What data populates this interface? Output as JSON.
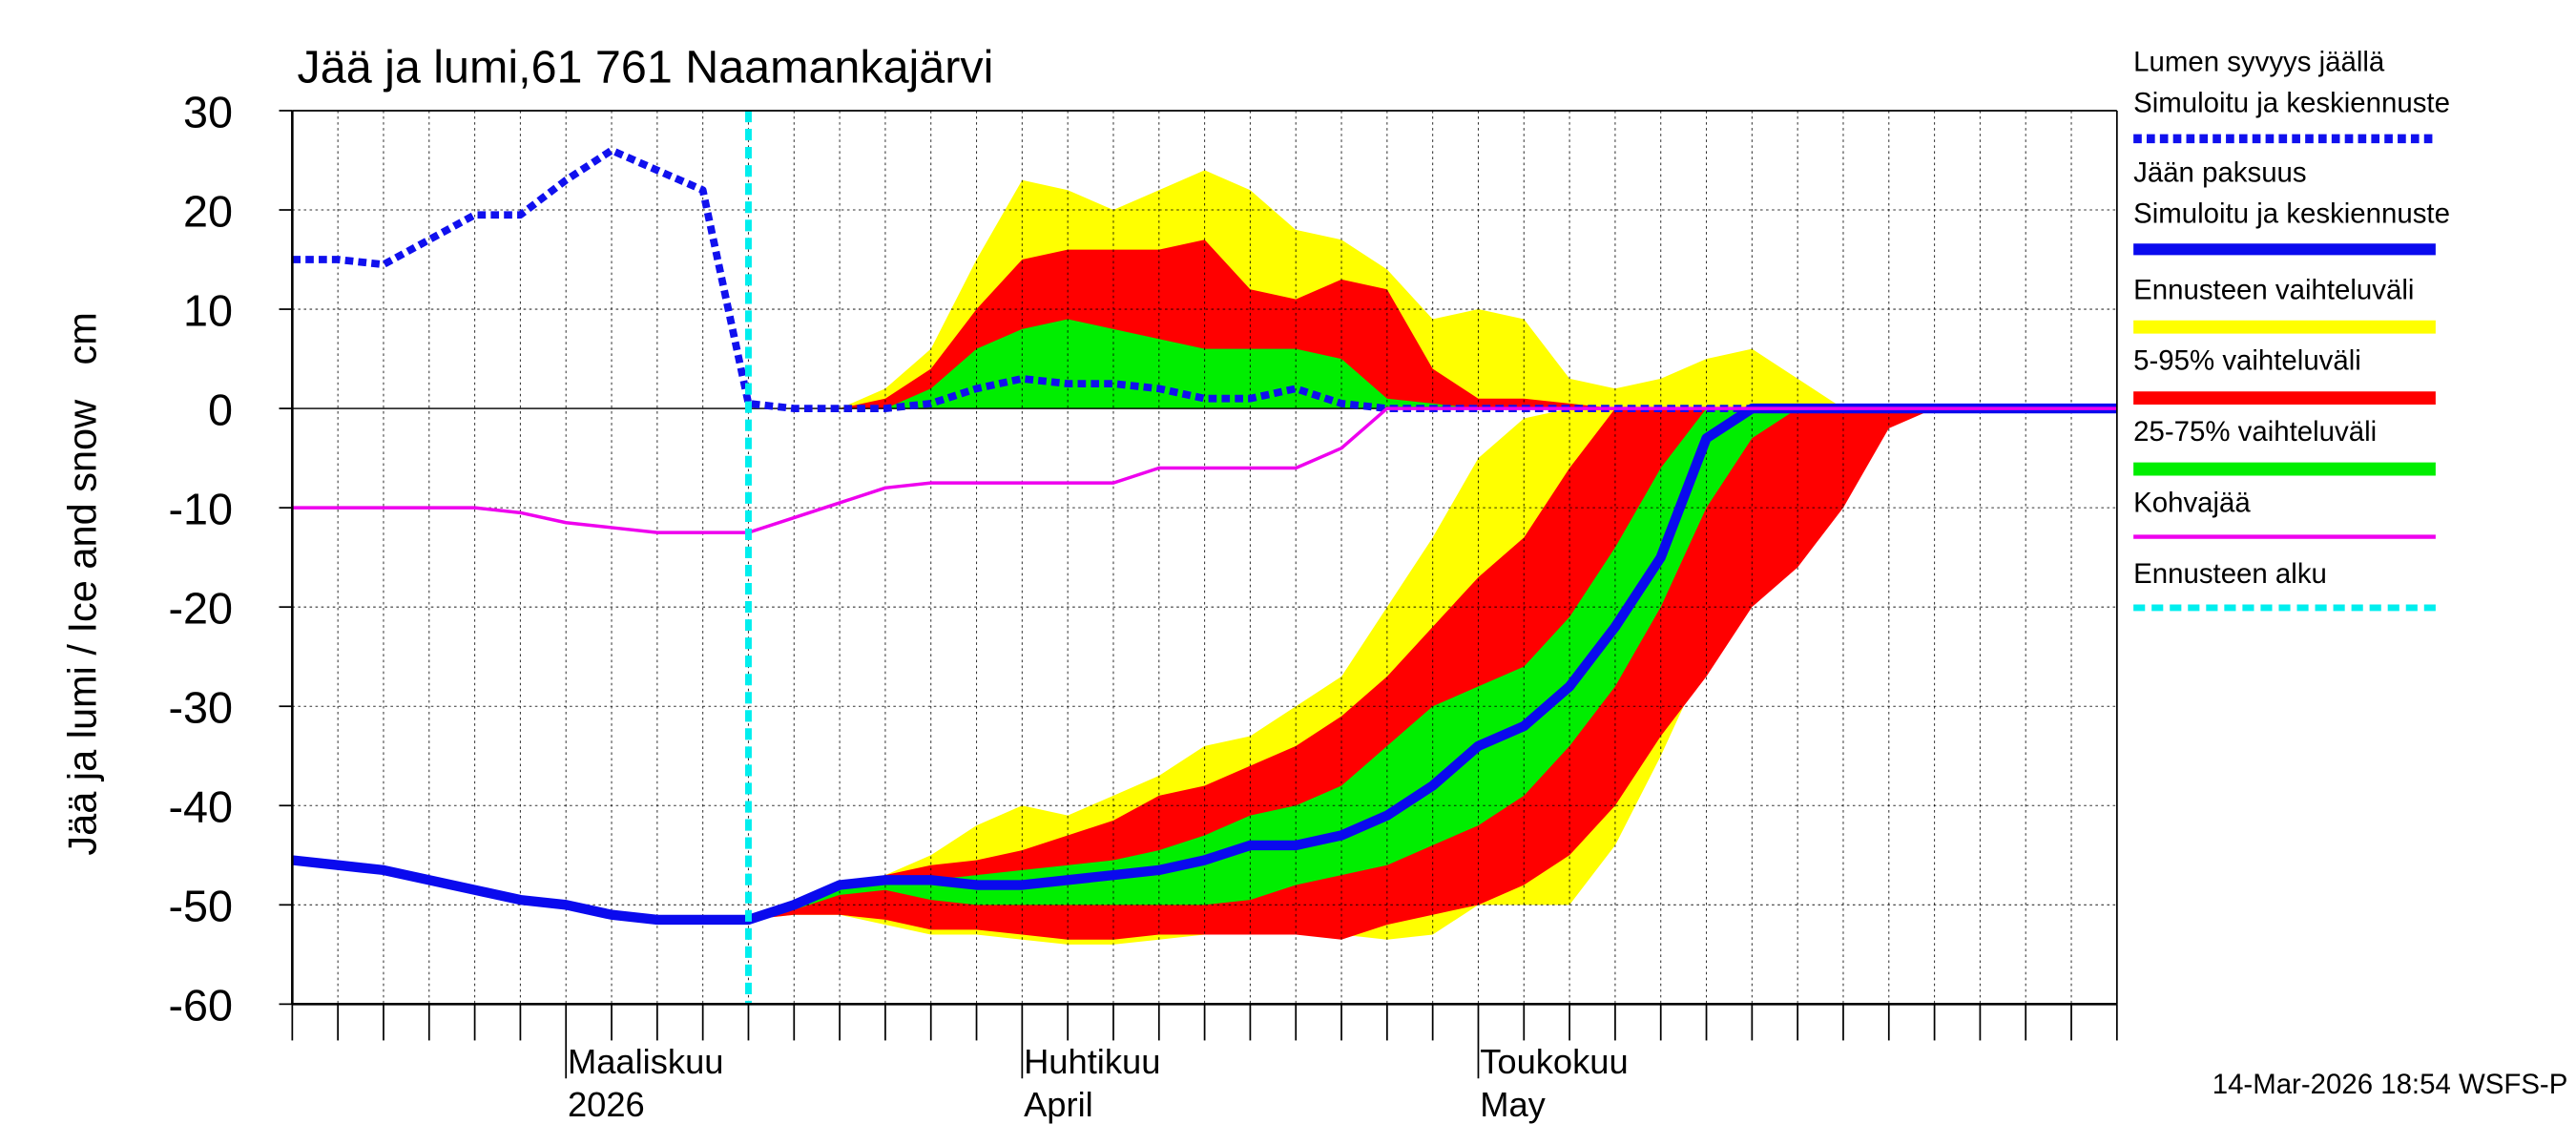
{
  "chart_data": {
    "type": "ice-forecast",
    "title": "Jää ja lumi,61 761 Naamankajärvi",
    "y_label": "Jää ja lumi / Ice and snow",
    "y_unit": "cm",
    "footer": "14-Mar-2026 18:54 WSFS-P",
    "ylim": [
      -60,
      30
    ],
    "yticks": [
      -60,
      -50,
      -40,
      -30,
      -20,
      -10,
      0,
      10,
      20,
      30
    ],
    "grid": true,
    "categories": [
      null,
      null,
      null,
      null,
      null,
      null,
      "Maaliskuu",
      null,
      null,
      null,
      null,
      null,
      null,
      null,
      null,
      null,
      "Huhtikuu",
      null,
      null,
      null,
      null,
      null,
      null,
      null,
      null,
      null,
      "Toukokuu",
      null,
      null,
      null,
      null,
      null,
      null,
      null,
      null,
      null,
      null,
      null,
      null,
      null,
      null
    ],
    "category_sublabels": [
      null,
      null,
      null,
      null,
      null,
      null,
      "2026",
      null,
      null,
      null,
      null,
      null,
      null,
      null,
      null,
      null,
      "April",
      null,
      null,
      null,
      null,
      null,
      null,
      null,
      null,
      null,
      "May",
      null,
      null,
      null,
      null,
      null,
      null,
      null,
      null,
      null,
      null,
      null,
      null,
      null,
      null
    ],
    "bands": [
      {
        "name": "Ennusteen vaihteluväli",
        "color": "#ffff00",
        "snow": [
          null,
          null,
          null,
          null,
          null,
          null,
          null,
          null,
          null,
          null,
          0,
          0,
          0,
          2,
          6,
          15,
          23,
          22,
          20,
          22,
          24,
          22,
          18,
          17,
          14,
          9,
          10,
          9,
          3,
          2,
          3,
          5,
          6,
          3,
          0,
          0,
          0,
          null,
          null,
          null,
          null
        ],
        "ice_high": [
          null,
          null,
          null,
          null,
          null,
          null,
          null,
          null,
          null,
          null,
          -51.5,
          -50,
          -48,
          -47,
          -45,
          -42,
          -40,
          -41,
          -39,
          -37,
          -34,
          -33,
          -30,
          -27,
          -20,
          -13,
          -5,
          -1,
          0,
          0,
          0,
          0,
          0,
          0,
          0,
          0,
          0,
          null,
          null,
          null,
          null
        ],
        "ice_low": [
          null,
          null,
          null,
          null,
          null,
          null,
          null,
          null,
          null,
          null,
          -51.5,
          -51,
          -51,
          -52,
          -53,
          -53,
          -53.5,
          -54,
          -54,
          -53.5,
          -53,
          -53,
          -53,
          -53,
          -53.5,
          -53,
          -50,
          -50,
          -50,
          -44,
          -35,
          -25,
          -17,
          -15,
          -8,
          0,
          0,
          null,
          null,
          null,
          null
        ]
      },
      {
        "name": "5-95% vaihteluväli",
        "color": "#ff0000",
        "snow": [
          null,
          null,
          null,
          null,
          null,
          null,
          null,
          null,
          null,
          null,
          0,
          0,
          0,
          1,
          4,
          10,
          15,
          16,
          16,
          16,
          17,
          12,
          11,
          13,
          12,
          4,
          1,
          1,
          0.5,
          0,
          0,
          0,
          0,
          0,
          0,
          0,
          0,
          null,
          null,
          null,
          null
        ],
        "ice_high": [
          null,
          null,
          null,
          null,
          null,
          null,
          null,
          null,
          null,
          null,
          -51.5,
          -50,
          -48,
          -47,
          -46,
          -45.5,
          -44.5,
          -43,
          -41.5,
          -39,
          -38,
          -36,
          -34,
          -31,
          -27,
          -22,
          -17,
          -13,
          -6,
          0,
          0,
          0,
          0,
          0,
          0,
          0,
          0,
          null,
          null,
          null,
          null
        ],
        "ice_low": [
          null,
          null,
          null,
          null,
          null,
          null,
          null,
          null,
          null,
          null,
          -51.5,
          -51,
          -51,
          -51.5,
          -52.5,
          -52.5,
          -53,
          -53.5,
          -53.5,
          -53,
          -53,
          -53,
          -53,
          -53.5,
          -52,
          -51,
          -50,
          -48,
          -45,
          -40,
          -33,
          -27,
          -20,
          -16,
          -10,
          -2,
          0,
          null,
          null,
          null,
          null
        ]
      },
      {
        "name": "25-75% vaihteluväli",
        "color": "#00ee00",
        "snow": [
          null,
          null,
          null,
          null,
          null,
          null,
          null,
          null,
          null,
          null,
          0,
          0,
          0,
          0,
          2,
          6,
          8,
          9,
          8,
          7,
          6,
          6,
          6,
          5,
          1,
          0.5,
          0,
          0,
          0,
          0,
          0,
          0,
          0,
          0,
          0,
          0,
          0,
          null,
          null,
          null,
          null
        ],
        "ice_high": [
          null,
          null,
          null,
          null,
          null,
          null,
          null,
          null,
          null,
          null,
          -51.5,
          -50,
          -48,
          -47.5,
          -47.5,
          -47,
          -46.5,
          -46,
          -45.5,
          -44.5,
          -43,
          -41,
          -40,
          -38,
          -34,
          -30,
          -28,
          -26,
          -21,
          -14,
          -6,
          0,
          0,
          0,
          0,
          0,
          0,
          null,
          null,
          null,
          null
        ],
        "ice_low": [
          null,
          null,
          null,
          null,
          null,
          null,
          null,
          null,
          null,
          null,
          -51.5,
          -50.5,
          -49,
          -48.5,
          -49.5,
          -50,
          -50,
          -50,
          -50,
          -50,
          -50,
          -49.5,
          -48,
          -47,
          -46,
          -44,
          -42,
          -39,
          -34,
          -28,
          -20,
          -10,
          -3,
          0,
          0,
          0,
          0,
          null,
          null,
          null,
          null
        ]
      }
    ],
    "series": [
      {
        "name": "Lumen syvyys jäällä",
        "subname": "Simuloitu ja keskiennuste",
        "color": "#1010ee",
        "style": "dashed",
        "values": [
          15,
          15,
          14.5,
          17,
          19.5,
          19.5,
          23,
          26,
          24,
          22,
          0.5,
          0,
          0,
          0,
          0.5,
          2,
          3,
          2.5,
          2.5,
          2,
          1,
          1,
          2,
          0.5,
          0,
          0,
          0,
          0,
          0,
          0,
          0,
          0,
          0,
          0,
          0,
          0,
          0,
          0,
          0,
          0,
          0
        ]
      },
      {
        "name": "Jään paksuus",
        "subname": "Simuloitu ja keskiennuste",
        "color": "#0a0aee",
        "style": "solid",
        "values": [
          -45.5,
          -46,
          -46.5,
          -47.5,
          -48.5,
          -49.5,
          -50,
          -51,
          -51.5,
          -51.5,
          -51.5,
          -50,
          -48,
          -47.5,
          -47.5,
          -48,
          -48,
          -47.5,
          -47,
          -46.5,
          -45.5,
          -44,
          -44,
          -43,
          -41,
          -38,
          -34,
          -32,
          -28,
          -22,
          -15,
          -3,
          0,
          0,
          0,
          0,
          0,
          0,
          0,
          0,
          0
        ]
      },
      {
        "name": "Kohvajää",
        "color": "#ee00ee",
        "style": "thin",
        "values": [
          -10,
          -10,
          -10,
          -10,
          -10,
          -10.5,
          -11.5,
          -12,
          -12.5,
          -12.5,
          -12.5,
          -11,
          -9.5,
          -8,
          -7.5,
          -7.5,
          -7.5,
          -7.5,
          -7.5,
          -6,
          -6,
          -6,
          -6,
          -4,
          0,
          0,
          0,
          0,
          0,
          0,
          0,
          0,
          0,
          0,
          0,
          0,
          0,
          0,
          0,
          0,
          0
        ]
      }
    ],
    "forecast_start": {
      "name": "Ennusteen alku",
      "color": "#00eeee",
      "category": 10
    }
  }
}
